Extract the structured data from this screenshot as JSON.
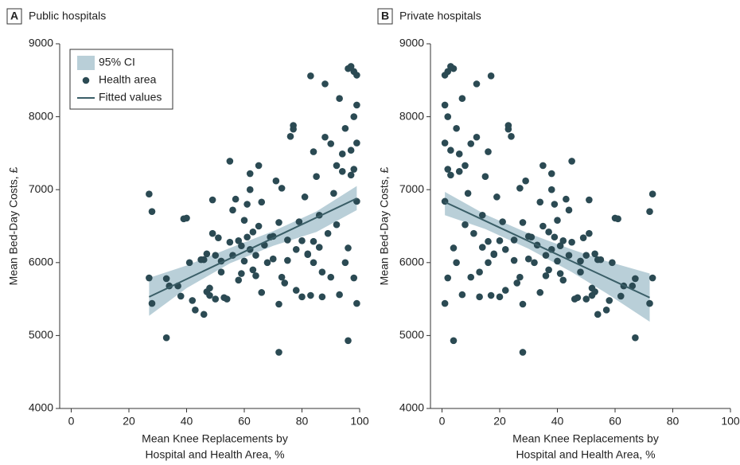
{
  "chart_data": [
    {
      "type": "scatter",
      "panel_label": "A",
      "title": "Public hospitals",
      "xlabel": [
        "Mean Knee Replacements by",
        "Hospital and Health Area, %"
      ],
      "ylabel": "Mean Bed-Day Costs, £",
      "xlim": [
        -4,
        100
      ],
      "ylim": [
        4000,
        9000
      ],
      "xticks": [
        0,
        20,
        40,
        60,
        80,
        100
      ],
      "yticks": [
        4000,
        5000,
        6000,
        7000,
        8000,
        9000
      ],
      "legend": "upper left",
      "series": [
        {
          "name": "95% CI",
          "kind": "band",
          "color": "#b9cfd8",
          "x": [
            27,
            40,
            55,
            70,
            85,
            99
          ],
          "lower": [
            5270,
            5650,
            5990,
            6230,
            6420,
            6720
          ],
          "upper": [
            5790,
            5960,
            6200,
            6430,
            6700,
            7050
          ]
        },
        {
          "name": "Health area",
          "kind": "points",
          "color": "#2b4a53",
          "x": [
            27,
            28,
            27,
            28,
            33,
            33,
            34,
            37,
            38,
            39,
            40,
            41,
            42,
            43,
            45,
            46,
            46,
            47,
            47,
            48,
            48,
            49,
            49,
            50,
            50,
            51,
            52,
            52,
            53,
            54,
            55,
            55,
            56,
            56,
            57,
            58,
            58,
            59,
            59,
            60,
            60,
            61,
            61,
            62,
            62,
            62,
            63,
            63,
            64,
            64,
            65,
            65,
            66,
            66,
            67,
            68,
            69,
            70,
            70,
            71,
            72,
            72,
            72,
            73,
            73,
            74,
            75,
            75,
            76,
            77,
            77,
            78,
            78,
            79,
            80,
            80,
            81,
            82,
            83,
            83,
            84,
            84,
            85,
            86,
            87,
            87,
            88,
            88,
            89,
            90,
            90,
            91,
            92,
            93,
            93,
            94,
            94,
            95,
            95,
            96,
            96,
            97,
            97,
            98,
            98,
            98,
            99,
            99,
            99,
            99,
            99,
            98,
            97,
            96,
            92,
            86,
            84,
            82
          ],
          "values": [
            6940,
            6700,
            5790,
            5440,
            4970,
            5780,
            5680,
            5680,
            5540,
            6600,
            6610,
            6000,
            5480,
            5350,
            6040,
            5290,
            6040,
            6120,
            5600,
            5550,
            5650,
            6400,
            6860,
            6100,
            5500,
            6340,
            5870,
            6020,
            5520,
            5500,
            7390,
            6280,
            6720,
            6100,
            6870,
            6300,
            5760,
            6230,
            5850,
            6020,
            6580,
            6800,
            6350,
            6180,
            7000,
            7220,
            5900,
            6420,
            6100,
            5820,
            7330,
            6500,
            5590,
            6830,
            6240,
            6000,
            6350,
            6050,
            6360,
            7120,
            4770,
            5430,
            6550,
            7020,
            5800,
            5720,
            6310,
            6030,
            7730,
            7880,
            7830,
            6180,
            5620,
            6560,
            6300,
            5530,
            6900,
            6110,
            8560,
            5550,
            7520,
            6290,
            7180,
            6650,
            5530,
            5870,
            8450,
            7720,
            6400,
            7630,
            5800,
            6950,
            7330,
            8250,
            5560,
            7250,
            7490,
            7840,
            6000,
            8660,
            4930,
            8690,
            7540,
            8620,
            8000,
            5790,
            8570,
            8160,
            7640,
            6840,
            5440,
            7280,
            7200,
            6200,
            6520,
            6210,
            6000,
            6120
          ]
        },
        {
          "name": "Fitted values",
          "kind": "line",
          "color": "#3a5e67",
          "x": [
            27,
            99
          ],
          "values": [
            5530,
            6880
          ]
        }
      ]
    },
    {
      "type": "scatter",
      "panel_label": "B",
      "title": "Private hospitals",
      "xlabel": [
        "Mean Knee Replacements by",
        "Hospital and Health Area, %"
      ],
      "ylabel": "Mean Bed-Day Costs, £",
      "xlim": [
        -4,
        100
      ],
      "ylim": [
        4000,
        9000
      ],
      "xticks": [
        0,
        20,
        40,
        60,
        80,
        100
      ],
      "yticks": [
        4000,
        5000,
        6000,
        7000,
        8000,
        9000
      ],
      "series": [
        {
          "kind": "band",
          "color": "#b9cfd8",
          "x": [
            1,
            15,
            30,
            45,
            57,
            72
          ],
          "lower": [
            6650,
            6460,
            6190,
            5870,
            5580,
            5190
          ],
          "upper": [
            6970,
            6660,
            6400,
            6180,
            6020,
            5850
          ]
        },
        {
          "kind": "points",
          "color": "#2b4a53",
          "x": [
            73,
            72,
            73,
            72,
            67,
            67,
            66,
            63,
            62,
            61,
            60,
            59,
            58,
            57,
            55,
            54,
            54,
            53,
            53,
            52,
            52,
            51,
            51,
            50,
            50,
            49,
            48,
            48,
            47,
            46,
            45,
            45,
            44,
            44,
            43,
            42,
            42,
            41,
            41,
            40,
            40,
            39,
            39,
            38,
            38,
            38,
            37,
            37,
            36,
            36,
            35,
            35,
            34,
            34,
            33,
            32,
            31,
            30,
            30,
            29,
            28,
            28,
            28,
            27,
            27,
            26,
            25,
            25,
            24,
            23,
            23,
            22,
            22,
            21,
            20,
            20,
            19,
            18,
            17,
            17,
            16,
            16,
            15,
            14,
            13,
            13,
            12,
            12,
            11,
            10,
            10,
            9,
            8,
            7,
            7,
            6,
            6,
            5,
            5,
            4,
            4,
            3,
            3,
            2,
            2,
            2,
            1,
            1,
            1,
            1,
            1,
            2,
            3,
            4,
            8,
            14,
            16,
            18
          ],
          "values": [
            6940,
            6700,
            5790,
            5440,
            4970,
            5780,
            5680,
            5680,
            5540,
            6600,
            6610,
            6000,
            5480,
            5350,
            6040,
            5290,
            6040,
            6120,
            5600,
            5550,
            5650,
            6400,
            6860,
            6100,
            5500,
            6340,
            5870,
            6020,
            5520,
            5500,
            7390,
            6280,
            6720,
            6100,
            6870,
            6300,
            5760,
            6230,
            5850,
            6020,
            6580,
            6800,
            6350,
            6180,
            7000,
            7220,
            5900,
            6420,
            6100,
            5820,
            7330,
            6500,
            5590,
            6830,
            6240,
            6000,
            6350,
            6050,
            6360,
            7120,
            4770,
            5430,
            6550,
            7020,
            5800,
            5720,
            6310,
            6030,
            7730,
            7880,
            7830,
            6180,
            5620,
            6560,
            6300,
            5530,
            6900,
            6110,
            8560,
            5550,
            7520,
            6290,
            7180,
            6650,
            5530,
            5870,
            8450,
            7720,
            6400,
            7630,
            5800,
            6950,
            7330,
            8250,
            5560,
            7250,
            7490,
            7840,
            6000,
            8660,
            4930,
            8690,
            7540,
            8620,
            8000,
            5790,
            8570,
            8160,
            7640,
            6840,
            5440,
            7280,
            7200,
            6200,
            6520,
            6210,
            6000,
            6120
          ]
        },
        {
          "kind": "line",
          "color": "#3a5e67",
          "x": [
            1,
            72
          ],
          "values": [
            6830,
            5520
          ]
        }
      ]
    }
  ]
}
